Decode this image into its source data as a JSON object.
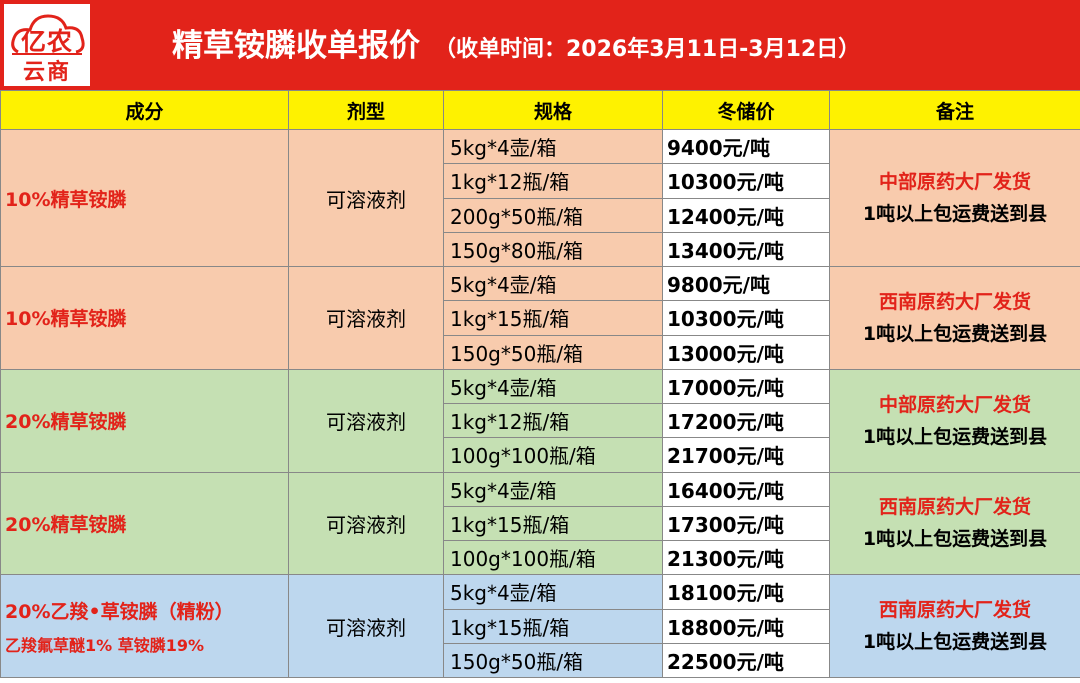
{
  "header": {
    "logo_line1": "亿农",
    "logo_line2": "云商",
    "title": "精草铵膦收单报价",
    "subtitle": "（收单时间：2026年3月11日-3月12日）",
    "background": "#e2231a"
  },
  "table": {
    "columns": [
      "成分",
      "剂型",
      "规格",
      "冬储价",
      "备注"
    ],
    "groups": [
      {
        "ingredient": "10%精草铵膦",
        "formulation": "可溶液剂",
        "note_red": "中部原药大厂发货",
        "note_black": "1吨以上包运费送到县",
        "rows": [
          {
            "spec": "5kg*4壶/箱",
            "price": "9400元/吨"
          },
          {
            "spec": "1kg*12瓶/箱",
            "price": "10300元/吨"
          },
          {
            "spec": "200g*50瓶/箱",
            "price": "12400元/吨"
          },
          {
            "spec": "150g*80瓶/箱",
            "price": "13400元/吨"
          }
        ]
      },
      {
        "ingredient": "10%精草铵膦",
        "formulation": "可溶液剂",
        "note_red": "西南原药大厂发货",
        "note_black": "1吨以上包运费送到县",
        "rows": [
          {
            "spec": "5kg*4壶/箱",
            "price": "9800元/吨"
          },
          {
            "spec": "1kg*15瓶/箱",
            "price": "10300元/吨"
          },
          {
            "spec": "150g*50瓶/箱",
            "price": "13000元/吨"
          }
        ]
      },
      {
        "ingredient": "20%精草铵膦",
        "formulation": "可溶液剂",
        "note_red": "中部原药大厂发货",
        "note_black": "1吨以上包运费送到县",
        "rows": [
          {
            "spec": "5kg*4壶/箱",
            "price": "17000元/吨"
          },
          {
            "spec": "1kg*12瓶/箱",
            "price": "17200元/吨"
          },
          {
            "spec": "100g*100瓶/箱",
            "price": "21700元/吨"
          }
        ]
      },
      {
        "ingredient": "20%精草铵膦",
        "formulation": "可溶液剂",
        "note_red": "西南原药大厂发货",
        "note_black": "1吨以上包运费送到县",
        "rows": [
          {
            "spec": "5kg*4壶/箱",
            "price": "16400元/吨"
          },
          {
            "spec": "1kg*15瓶/箱",
            "price": "17300元/吨"
          },
          {
            "spec": "100g*100瓶/箱",
            "price": "21300元/吨"
          }
        ]
      },
      {
        "ingredient": "20%乙羧•草铵膦（精粉）",
        "ingredient_sub": "乙羧氟草醚1% 草铵膦19%",
        "formulation": "可溶液剂",
        "note_red": "西南原药大厂发货",
        "note_black": "1吨以上包运费送到县",
        "rows": [
          {
            "spec": "5kg*4壶/箱",
            "price": "18100元/吨"
          },
          {
            "spec": "1kg*15瓶/箱",
            "price": "18800元/吨"
          },
          {
            "spec": "150g*50瓶/箱",
            "price": "22500元/吨"
          }
        ]
      }
    ]
  }
}
